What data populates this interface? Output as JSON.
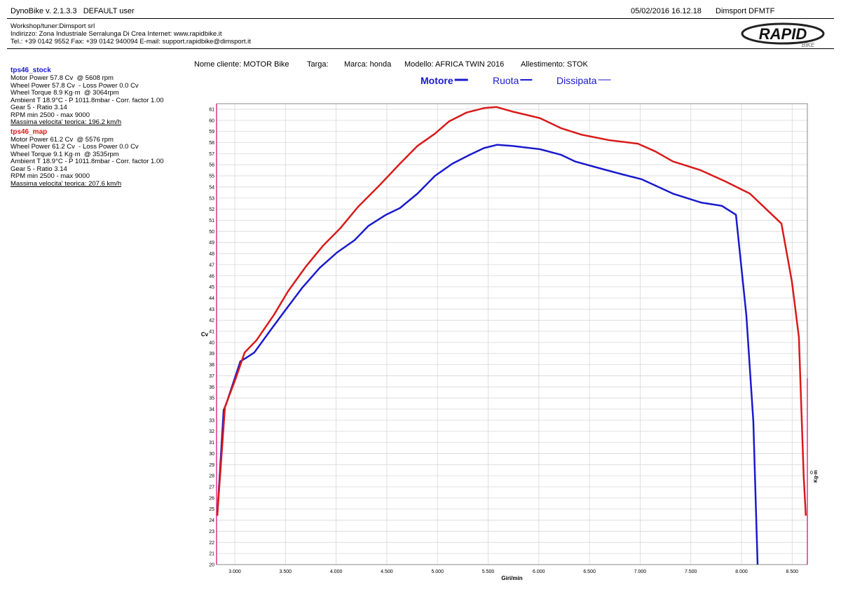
{
  "header": {
    "app": "DynoBike v. 2.1.3.3   DEFAULT user",
    "datetime": "05/02/2016 16.12.18",
    "station": "Dimsport DFMTF"
  },
  "workshop": [
    "Workshop/tuner:Dimsport srl",
    "Indirizzo: Zona Industriale Serralunga Di Crea Internet: www.rapidbike.it",
    "Tel.: +39 0142 9552 Fax: +39 0142 940094 E-mail: support.rapidbike@dimsport.it"
  ],
  "logo": {
    "main": "RAPID",
    "sub": "BIKE"
  },
  "info_panels": [
    [
      "Motor Power 57.8 Cv  @ 5608 rpm",
      "Wheel Power 57.8 Cv  - Loss Power 0.0 Cv",
      "Wheel Torque 8.9 Kg·m  @ 3064rpm",
      "Ambient T 18.9°C - P 1011.8mbar - Corr. factor 1.00",
      "Gear 5 - Ratio 3.14",
      "RPM min 2500 - max 9000",
      "Massima velocita' teorica: 196.2 km/h"
    ],
    [
      "Motor Power 61.2 Cv  @ 5576 rpm",
      "Wheel Power 61.2 Cv  - Loss Power 0.0 Cv",
      "Wheel Torque 9.1 Kg·m  @ 3535rpm",
      "Ambient T 18.9°C - P 1011.8mbar - Corr. factor 1.00",
      "Gear 5 - Ratio 3.14",
      "RPM min 2500 - max 9000",
      "Massima velocita' teorica: 207.6 km/h"
    ]
  ],
  "meta": [
    "Nome cliente: MOTOR Bike",
    "Targa:",
    "Marca: honda",
    "Modello: AFRICA TWIN 2016",
    "Allestimento: STOK"
  ],
  "chart_data": {
    "type": "line",
    "legend": [
      "Motore",
      "Ruota",
      "Dissipata"
    ],
    "legend_color": "#1a1acc",
    "xlabel": "Giri/min",
    "ylabel": "Cv",
    "y2label": "Kg·m",
    "xlim": [
      2820,
      8650
    ],
    "ylim": [
      20,
      61.5
    ],
    "y2lim": [
      -2,
      8
    ],
    "xticks": [
      {
        "value": 3000,
        "label": "3.000"
      },
      {
        "value": 3500,
        "label": "3.500"
      },
      {
        "value": 4000,
        "label": "4.000"
      },
      {
        "value": 4500,
        "label": "4.500"
      },
      {
        "value": 5000,
        "label": "5.000"
      },
      {
        "value": 5500,
        "label": "5.500"
      },
      {
        "value": 6000,
        "label": "6.000"
      },
      {
        "value": 6500,
        "label": "6.500"
      },
      {
        "value": 7000,
        "label": "7.000"
      },
      {
        "value": 7500,
        "label": "7.500"
      },
      {
        "value": 8000,
        "label": "8.000"
      },
      {
        "value": 8500,
        "label": "8.500"
      }
    ],
    "yticks": [
      20,
      21,
      22,
      23,
      24,
      25,
      26,
      27,
      28,
      29,
      30,
      31,
      32,
      33,
      34,
      35,
      36,
      37,
      38,
      39,
      40,
      41,
      42,
      43,
      44,
      45,
      46,
      47,
      48,
      49,
      50,
      51,
      52,
      53,
      54,
      55,
      56,
      57,
      58,
      59,
      60,
      61
    ],
    "y2ticks": [
      0
    ],
    "grid": true,
    "series": [
      {
        "name": "tps46_stock",
        "color": "#1a1acc",
        "x": [
          2827,
          2890,
          2917,
          3055,
          3110,
          3193,
          3352,
          3490,
          3663,
          3836,
          4008,
          4181,
          4319,
          4492,
          4630,
          4803,
          4975,
          5148,
          5320,
          5459,
          5590,
          5735,
          6011,
          6218,
          6356,
          6633,
          6840,
          7012,
          7323,
          7599,
          7807,
          7945,
          8048,
          8117,
          8159
        ],
        "values": [
          24.4,
          33.9,
          34.5,
          38.3,
          38.6,
          39.1,
          41.1,
          42.8,
          44.9,
          46.7,
          48.1,
          49.2,
          50.5,
          51.5,
          52.1,
          53.4,
          55.0,
          56.1,
          56.9,
          57.5,
          57.8,
          57.7,
          57.4,
          56.9,
          56.3,
          55.6,
          55.1,
          54.7,
          53.4,
          52.6,
          52.3,
          51.5,
          42.4,
          32.9,
          20.0
        ]
      },
      {
        "name": "tps46_map",
        "color": "#d91a1a",
        "x": [
          2827,
          2903,
          3007,
          3097,
          3214,
          3387,
          3525,
          3698,
          3870,
          4043,
          4215,
          4423,
          4630,
          4803,
          4975,
          5113,
          5286,
          5459,
          5583,
          5735,
          6011,
          6218,
          6425,
          6702,
          6978,
          7150,
          7323,
          7599,
          7841,
          8083,
          8256,
          8394,
          8497,
          8566,
          8614,
          8635
        ],
        "values": [
          24.4,
          34.2,
          36.7,
          39.1,
          40.2,
          42.5,
          44.6,
          46.8,
          48.7,
          50.3,
          52.2,
          54.1,
          56.1,
          57.7,
          58.8,
          59.9,
          60.7,
          61.1,
          61.2,
          60.8,
          60.2,
          59.3,
          58.7,
          58.2,
          57.9,
          57.2,
          56.3,
          55.5,
          54.5,
          53.4,
          51.9,
          50.7,
          45.5,
          40.5,
          27.9,
          24.4
        ]
      }
    ]
  }
}
